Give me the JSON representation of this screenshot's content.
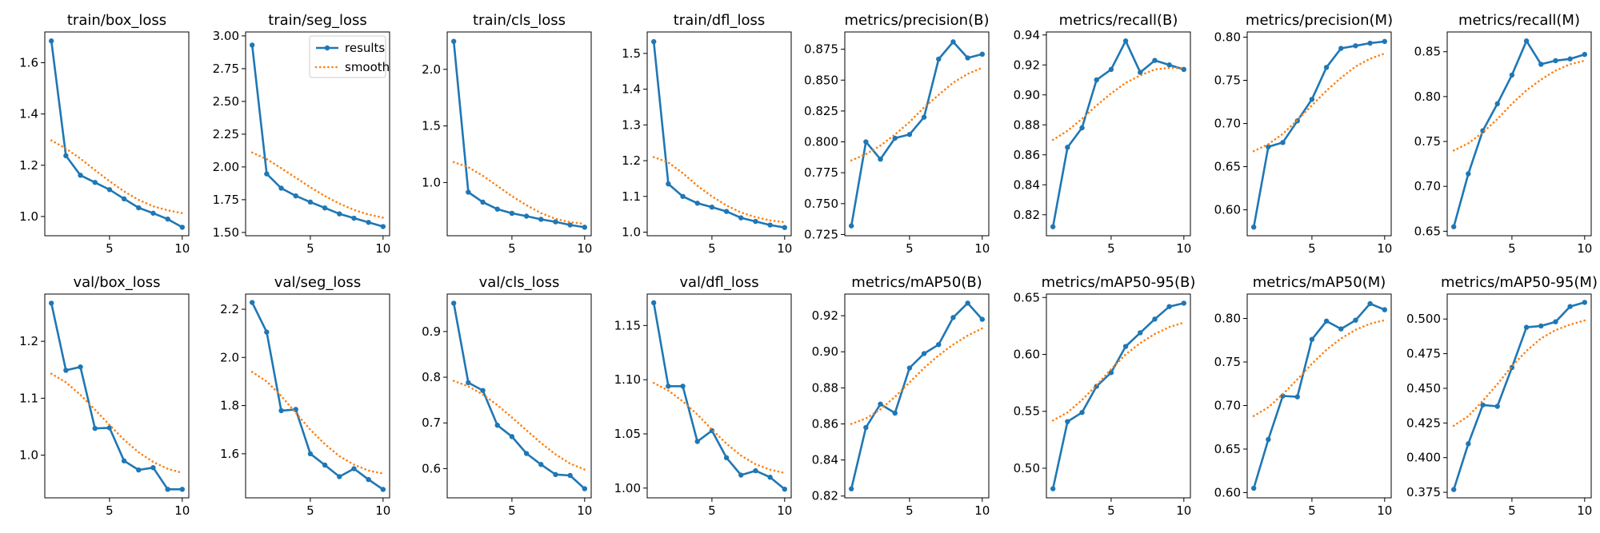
{
  "colors": {
    "results": "#1f77b4",
    "smooth": "#ff7f0e",
    "axis": "#000000"
  },
  "chart_data": [
    {
      "type": "line",
      "title": "train/box_loss",
      "x": [
        1,
        2,
        3,
        4,
        5,
        6,
        7,
        8,
        9,
        10
      ],
      "series": [
        {
          "name": "results",
          "values": [
            1.685,
            1.237,
            1.161,
            1.133,
            1.105,
            1.069,
            1.034,
            1.013,
            0.99,
            0.958
          ]
        },
        {
          "name": "smooth",
          "values": [
            1.297,
            1.265,
            1.226,
            1.181,
            1.138,
            1.098,
            1.065,
            1.04,
            1.024,
            1.013
          ]
        }
      ],
      "yticks": [
        1.0,
        1.2,
        1.4,
        1.6
      ],
      "ytick_labels": [
        "1.0",
        "1.2",
        "1.4",
        "1.6"
      ],
      "ylim": [
        0.925,
        1.72
      ],
      "xticks": [
        5,
        10
      ],
      "xlim": [
        0.55,
        10.45
      ]
    },
    {
      "type": "line",
      "title": "train/seg_loss",
      "x": [
        1,
        2,
        3,
        4,
        5,
        6,
        7,
        8,
        9,
        10
      ],
      "series": [
        {
          "name": "results",
          "values": [
            2.93,
            1.947,
            1.838,
            1.779,
            1.732,
            1.687,
            1.642,
            1.609,
            1.577,
            1.545
          ]
        },
        {
          "name": "smooth",
          "values": [
            2.11,
            2.06,
            1.99,
            1.918,
            1.845,
            1.778,
            1.72,
            1.672,
            1.637,
            1.613
          ]
        }
      ],
      "yticks": [
        1.5,
        1.75,
        2.0,
        2.25,
        2.5,
        2.75,
        3.0
      ],
      "ytick_labels": [
        "1.50",
        "1.75",
        "2.00",
        "2.25",
        "2.50",
        "2.75",
        "3.00"
      ],
      "ylim": [
        1.475,
        3.03
      ],
      "xticks": [
        5,
        10
      ],
      "xlim": [
        0.55,
        10.45
      ],
      "legend": {
        "placement": "upper-right",
        "entries": [
          "results",
          "smooth"
        ]
      }
    },
    {
      "type": "line",
      "title": "train/cls_loss",
      "x": [
        1,
        2,
        3,
        4,
        5,
        6,
        7,
        8,
        9,
        10
      ],
      "series": [
        {
          "name": "results",
          "values": [
            2.247,
            0.915,
            0.827,
            0.765,
            0.728,
            0.703,
            0.675,
            0.653,
            0.625,
            0.605
          ]
        },
        {
          "name": "smooth",
          "values": [
            1.18,
            1.135,
            1.06,
            0.97,
            0.88,
            0.8,
            0.73,
            0.68,
            0.65,
            0.635
          ]
        }
      ],
      "yticks": [
        1.0,
        1.5,
        2.0
      ],
      "ytick_labels": [
        "1.0",
        "1.5",
        "2.0"
      ],
      "ylim": [
        0.53,
        2.33
      ],
      "xticks": [
        5,
        10
      ],
      "xlim": [
        0.55,
        10.45
      ]
    },
    {
      "type": "line",
      "title": "train/dfl_loss",
      "x": [
        1,
        2,
        3,
        4,
        5,
        6,
        7,
        8,
        9,
        10
      ],
      "series": [
        {
          "name": "results",
          "values": [
            1.533,
            1.135,
            1.1,
            1.081,
            1.07,
            1.058,
            1.04,
            1.03,
            1.02,
            1.013
          ]
        },
        {
          "name": "smooth",
          "values": [
            1.21,
            1.195,
            1.165,
            1.13,
            1.1,
            1.075,
            1.055,
            1.042,
            1.033,
            1.028
          ]
        }
      ],
      "yticks": [
        1.0,
        1.1,
        1.2,
        1.3,
        1.4,
        1.5
      ],
      "ytick_labels": [
        "1.0",
        "1.1",
        "1.2",
        "1.3",
        "1.4",
        "1.5"
      ],
      "ylim": [
        0.99,
        1.56
      ],
      "xticks": [
        5,
        10
      ],
      "xlim": [
        0.55,
        10.45
      ]
    },
    {
      "type": "line",
      "title": "metrics/precision(B)",
      "x": [
        1,
        2,
        3,
        4,
        5,
        6,
        7,
        8,
        9,
        10
      ],
      "series": [
        {
          "name": "results",
          "values": [
            0.732,
            0.8,
            0.786,
            0.803,
            0.806,
            0.82,
            0.867,
            0.881,
            0.868,
            0.871
          ]
        },
        {
          "name": "smooth",
          "values": [
            0.785,
            0.79,
            0.797,
            0.806,
            0.816,
            0.828,
            0.838,
            0.848,
            0.855,
            0.86
          ]
        }
      ],
      "yticks": [
        0.725,
        0.75,
        0.775,
        0.8,
        0.825,
        0.85,
        0.875
      ],
      "ytick_labels": [
        "0.725",
        "0.750",
        "0.775",
        "0.800",
        "0.825",
        "0.850",
        "0.875"
      ],
      "ylim": [
        0.724,
        0.889
      ],
      "xticks": [
        5,
        10
      ],
      "xlim": [
        0.55,
        10.45
      ]
    },
    {
      "type": "line",
      "title": "metrics/recall(B)",
      "x": [
        1,
        2,
        3,
        4,
        5,
        6,
        7,
        8,
        9,
        10
      ],
      "series": [
        {
          "name": "results",
          "values": [
            0.812,
            0.865,
            0.878,
            0.91,
            0.917,
            0.936,
            0.915,
            0.923,
            0.92,
            0.917
          ]
        },
        {
          "name": "smooth",
          "values": [
            0.87,
            0.876,
            0.884,
            0.893,
            0.901,
            0.908,
            0.913,
            0.917,
            0.918,
            0.918
          ]
        }
      ],
      "yticks": [
        0.82,
        0.84,
        0.86,
        0.88,
        0.9,
        0.92,
        0.94
      ],
      "ytick_labels": [
        "0.82",
        "0.84",
        "0.86",
        "0.88",
        "0.90",
        "0.92",
        "0.94"
      ],
      "ylim": [
        0.806,
        0.942
      ],
      "xticks": [
        5,
        10
      ],
      "xlim": [
        0.55,
        10.45
      ]
    },
    {
      "type": "line",
      "title": "metrics/precision(M)",
      "x": [
        1,
        2,
        3,
        4,
        5,
        6,
        7,
        8,
        9,
        10
      ],
      "series": [
        {
          "name": "results",
          "values": [
            0.58,
            0.673,
            0.678,
            0.703,
            0.728,
            0.765,
            0.787,
            0.79,
            0.793,
            0.795
          ]
        },
        {
          "name": "smooth",
          "values": [
            0.668,
            0.676,
            0.688,
            0.704,
            0.721,
            0.738,
            0.753,
            0.766,
            0.775,
            0.781
          ]
        }
      ],
      "yticks": [
        0.6,
        0.65,
        0.7,
        0.75,
        0.8
      ],
      "ytick_labels": [
        "0.60",
        "0.65",
        "0.70",
        "0.75",
        "0.80"
      ],
      "ylim": [
        0.57,
        0.806
      ],
      "xticks": [
        5,
        10
      ],
      "xlim": [
        0.55,
        10.45
      ]
    },
    {
      "type": "line",
      "title": "metrics/recall(M)",
      "x": [
        1,
        2,
        3,
        4,
        5,
        6,
        7,
        8,
        9,
        10
      ],
      "series": [
        {
          "name": "results",
          "values": [
            0.655,
            0.714,
            0.762,
            0.792,
            0.824,
            0.862,
            0.836,
            0.84,
            0.842,
            0.847
          ]
        },
        {
          "name": "smooth",
          "values": [
            0.74,
            0.748,
            0.76,
            0.775,
            0.792,
            0.807,
            0.819,
            0.829,
            0.836,
            0.84
          ]
        }
      ],
      "yticks": [
        0.65,
        0.7,
        0.75,
        0.8,
        0.85
      ],
      "ytick_labels": [
        "0.65",
        "0.70",
        "0.75",
        "0.80",
        "0.85"
      ],
      "ylim": [
        0.645,
        0.872
      ],
      "xticks": [
        5,
        10
      ],
      "xlim": [
        0.55,
        10.45
      ]
    },
    {
      "type": "line",
      "title": "val/box_loss",
      "x": [
        1,
        2,
        3,
        4,
        5,
        6,
        7,
        8,
        9,
        10
      ],
      "series": [
        {
          "name": "results",
          "values": [
            1.267,
            1.149,
            1.155,
            1.047,
            1.048,
            0.99,
            0.974,
            0.978,
            0.94,
            0.94
          ]
        },
        {
          "name": "smooth",
          "values": [
            1.143,
            1.128,
            1.106,
            1.08,
            1.053,
            1.027,
            1.005,
            0.988,
            0.976,
            0.969
          ]
        }
      ],
      "yticks": [
        1.0,
        1.1,
        1.2
      ],
      "ytick_labels": [
        "1.0",
        "1.1",
        "1.2"
      ],
      "ylim": [
        0.925,
        1.283
      ],
      "xticks": [
        5,
        10
      ],
      "xlim": [
        0.55,
        10.45
      ]
    },
    {
      "type": "line",
      "title": "val/seg_loss",
      "x": [
        1,
        2,
        3,
        4,
        5,
        6,
        7,
        8,
        9,
        10
      ],
      "series": [
        {
          "name": "results",
          "values": [
            2.228,
            2.105,
            1.779,
            1.784,
            1.6,
            1.553,
            1.505,
            1.538,
            1.493,
            1.452
          ]
        },
        {
          "name": "smooth",
          "values": [
            1.94,
            1.9,
            1.84,
            1.77,
            1.7,
            1.64,
            1.59,
            1.555,
            1.53,
            1.518
          ]
        }
      ],
      "yticks": [
        1.6,
        1.8,
        2.0,
        2.2
      ],
      "ytick_labels": [
        "1.6",
        "1.8",
        "2.0",
        "2.2"
      ],
      "ylim": [
        1.417,
        2.263
      ],
      "xticks": [
        5,
        10
      ],
      "xlim": [
        0.55,
        10.45
      ]
    },
    {
      "type": "line",
      "title": "val/cls_loss",
      "x": [
        1,
        2,
        3,
        4,
        5,
        6,
        7,
        8,
        9,
        10
      ],
      "series": [
        {
          "name": "results",
          "values": [
            0.962,
            0.788,
            0.771,
            0.695,
            0.67,
            0.633,
            0.609,
            0.587,
            0.585,
            0.556
          ]
        },
        {
          "name": "smooth",
          "values": [
            0.792,
            0.78,
            0.762,
            0.739,
            0.712,
            0.684,
            0.656,
            0.631,
            0.611,
            0.598
          ]
        }
      ],
      "yticks": [
        0.6,
        0.7,
        0.8,
        0.9
      ],
      "ytick_labels": [
        "0.6",
        "0.7",
        "0.8",
        "0.9"
      ],
      "ylim": [
        0.536,
        0.982
      ],
      "xticks": [
        5,
        10
      ],
      "xlim": [
        0.55,
        10.45
      ]
    },
    {
      "type": "line",
      "title": "val/dfl_loss",
      "x": [
        1,
        2,
        3,
        4,
        5,
        6,
        7,
        8,
        9,
        10
      ],
      "series": [
        {
          "name": "results",
          "values": [
            1.171,
            1.094,
            1.094,
            1.043,
            1.053,
            1.028,
            1.012,
            1.016,
            1.01,
            0.999
          ]
        },
        {
          "name": "smooth",
          "values": [
            1.097,
            1.09,
            1.08,
            1.068,
            1.054,
            1.041,
            1.03,
            1.022,
            1.017,
            1.014
          ]
        }
      ],
      "yticks": [
        1.0,
        1.05,
        1.1,
        1.15
      ],
      "ytick_labels": [
        "1.00",
        "1.05",
        "1.10",
        "1.15"
      ],
      "ylim": [
        0.991,
        1.179
      ],
      "xticks": [
        5,
        10
      ],
      "xlim": [
        0.55,
        10.45
      ]
    },
    {
      "type": "line",
      "title": "metrics/mAP50(B)",
      "x": [
        1,
        2,
        3,
        4,
        5,
        6,
        7,
        8,
        9,
        10
      ],
      "series": [
        {
          "name": "results",
          "values": [
            0.824,
            0.858,
            0.871,
            0.866,
            0.891,
            0.899,
            0.904,
            0.919,
            0.927,
            0.918
          ]
        },
        {
          "name": "smooth",
          "values": [
            0.86,
            0.863,
            0.868,
            0.875,
            0.883,
            0.891,
            0.898,
            0.904,
            0.909,
            0.913
          ]
        }
      ],
      "yticks": [
        0.82,
        0.84,
        0.86,
        0.88,
        0.9,
        0.92
      ],
      "ytick_labels": [
        "0.82",
        "0.84",
        "0.86",
        "0.88",
        "0.90",
        "0.92"
      ],
      "ylim": [
        0.819,
        0.932
      ],
      "xticks": [
        5,
        10
      ],
      "xlim": [
        0.55,
        10.45
      ]
    },
    {
      "type": "line",
      "title": "metrics/mAP50-95(B)",
      "x": [
        1,
        2,
        3,
        4,
        5,
        6,
        7,
        8,
        9,
        10
      ],
      "series": [
        {
          "name": "results",
          "values": [
            0.482,
            0.541,
            0.549,
            0.572,
            0.584,
            0.607,
            0.619,
            0.631,
            0.642,
            0.645
          ]
        },
        {
          "name": "smooth",
          "values": [
            0.542,
            0.549,
            0.56,
            0.573,
            0.587,
            0.6,
            0.61,
            0.618,
            0.624,
            0.628
          ]
        }
      ],
      "yticks": [
        0.5,
        0.55,
        0.6,
        0.65
      ],
      "ytick_labels": [
        "0.50",
        "0.55",
        "0.60",
        "0.65"
      ],
      "ylim": [
        0.474,
        0.653
      ],
      "xticks": [
        5,
        10
      ],
      "xlim": [
        0.55,
        10.45
      ]
    },
    {
      "type": "line",
      "title": "metrics/mAP50(M)",
      "x": [
        1,
        2,
        3,
        4,
        5,
        6,
        7,
        8,
        9,
        10
      ],
      "series": [
        {
          "name": "results",
          "values": [
            0.605,
            0.661,
            0.711,
            0.71,
            0.776,
            0.797,
            0.788,
            0.798,
            0.817,
            0.81
          ]
        },
        {
          "name": "smooth",
          "values": [
            0.688,
            0.698,
            0.713,
            0.73,
            0.748,
            0.764,
            0.777,
            0.787,
            0.794,
            0.798
          ]
        }
      ],
      "yticks": [
        0.6,
        0.65,
        0.7,
        0.75,
        0.8
      ],
      "ytick_labels": [
        "0.60",
        "0.65",
        "0.70",
        "0.75",
        "0.80"
      ],
      "ylim": [
        0.594,
        0.828
      ],
      "xticks": [
        5,
        10
      ],
      "xlim": [
        0.55,
        10.45
      ]
    },
    {
      "type": "line",
      "title": "metrics/mAP50-95(M)",
      "x": [
        1,
        2,
        3,
        4,
        5,
        6,
        7,
        8,
        9,
        10
      ],
      "series": [
        {
          "name": "results",
          "values": [
            0.377,
            0.41,
            0.438,
            0.437,
            0.465,
            0.494,
            0.495,
            0.498,
            0.509,
            0.512
          ]
        },
        {
          "name": "smooth",
          "values": [
            0.423,
            0.43,
            0.441,
            0.453,
            0.466,
            0.477,
            0.486,
            0.492,
            0.496,
            0.499
          ]
        }
      ],
      "yticks": [
        0.375,
        0.4,
        0.425,
        0.45,
        0.475,
        0.5
      ],
      "ytick_labels": [
        "0.375",
        "0.400",
        "0.425",
        "0.450",
        "0.475",
        "0.500"
      ],
      "ylim": [
        0.371,
        0.518
      ],
      "xticks": [
        5,
        10
      ],
      "xlim": [
        0.55,
        10.45
      ]
    }
  ]
}
